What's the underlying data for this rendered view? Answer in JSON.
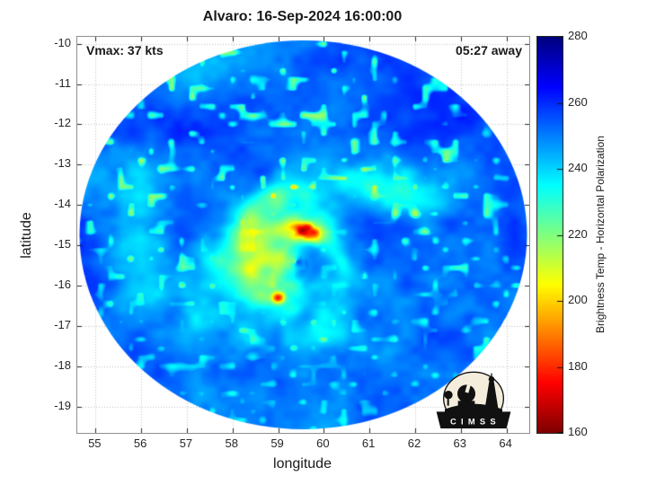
{
  "logo": {
    "text": "C I M S S"
  },
  "chart_data": {
    "type": "heatmap",
    "title": "Alvaro: 16-Sep-2024 16:00:00",
    "storm_name": "Alvaro",
    "timestamp": "16-Sep-2024 16:00:00",
    "annotations": {
      "vmax": "Vmax: 37 kts",
      "eta": "05:27 away"
    },
    "xlabel": "longitude",
    "ylabel": "latitude",
    "xlim": [
      54.6,
      64.5
    ],
    "ylim": [
      -19.65,
      -9.83
    ],
    "x_ticks": [
      55,
      56,
      57,
      58,
      59,
      60,
      61,
      62,
      63,
      64
    ],
    "y_ticks": [
      -10,
      -11,
      -12,
      -13,
      -14,
      -15,
      -16,
      -17,
      -18,
      -19
    ],
    "grid": "dotted",
    "colorbar": {
      "label": "Brightness Temp - Horizontal Polarization",
      "min": 160,
      "max": 280,
      "ticks": [
        160,
        180,
        200,
        220,
        240,
        260,
        280
      ],
      "colormap": "jet_reversed"
    },
    "swath": {
      "center_lon": 59.55,
      "center_lat": -14.74,
      "radius_deg": 4.9,
      "radius_lat_deg": 4.82
    },
    "storm_center": {
      "lon": 59.4,
      "lat": -15.4
    },
    "background_temp_K": 252,
    "features": [
      {
        "name": "deep-convection-crescent",
        "lon": 59.6,
        "lat": -14.65,
        "min_temp_K": 162
      },
      {
        "name": "convective-cell-south",
        "lon": 59.0,
        "lat": -16.3,
        "min_temp_K": 180
      },
      {
        "name": "convective-band-west-of-center",
        "approx_temp_K": 205
      }
    ]
  }
}
